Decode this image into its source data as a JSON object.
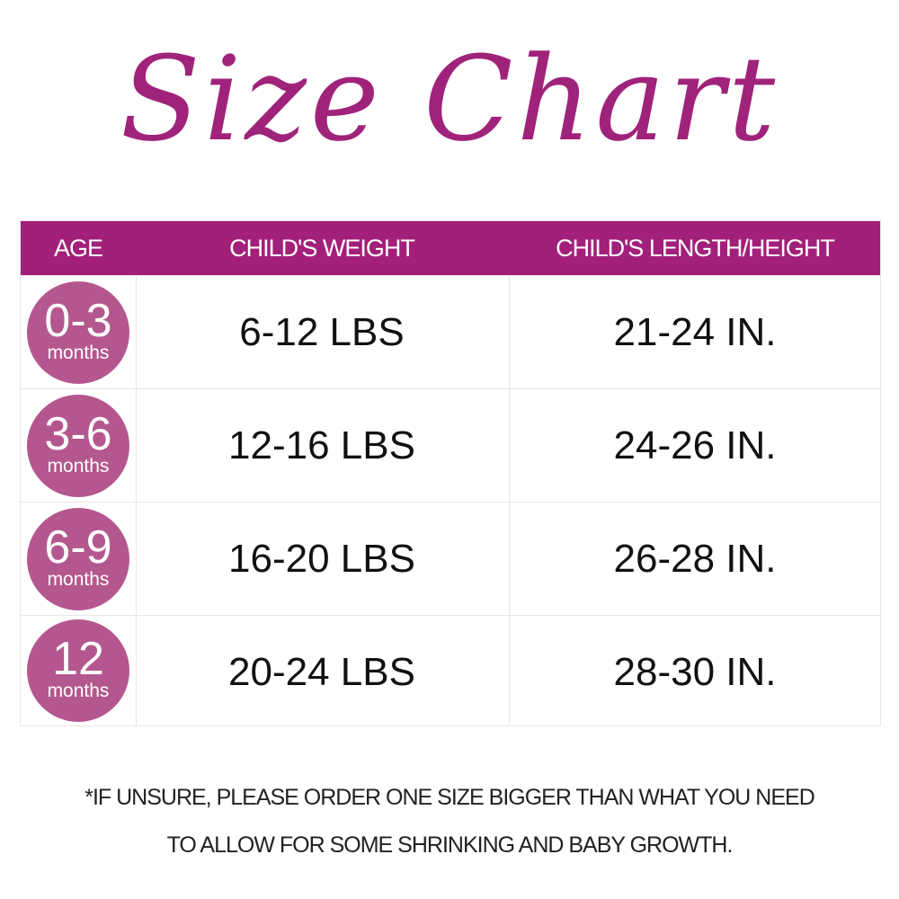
{
  "title": "Size Chart",
  "colors": {
    "title": "#a0237b",
    "header": "#a2207a",
    "age_circle": "#b5578f"
  },
  "table": {
    "headers": [
      "AGE",
      "CHILD'S WEIGHT",
      "CHILD'S LENGTH/HEIGHT"
    ],
    "rows": [
      {
        "age": "0-3",
        "age_unit": "months",
        "weight": "6-12 LBS",
        "length": "21-24 IN."
      },
      {
        "age": "3-6",
        "age_unit": "months",
        "weight": "12-16 LBS",
        "length": "24-26 IN."
      },
      {
        "age": "6-9",
        "age_unit": "months",
        "weight": "16-20 LBS",
        "length": "26-28 IN."
      },
      {
        "age": "12",
        "age_unit": "months",
        "weight": "20-24 LBS",
        "length": "28-30 IN."
      }
    ]
  },
  "footnote": {
    "line1": "*IF UNSURE, PLEASE ORDER ONE SIZE BIGGER THAN WHAT YOU NEED",
    "line2": "TO ALLOW FOR SOME SHRINKING AND BABY GROWTH."
  }
}
